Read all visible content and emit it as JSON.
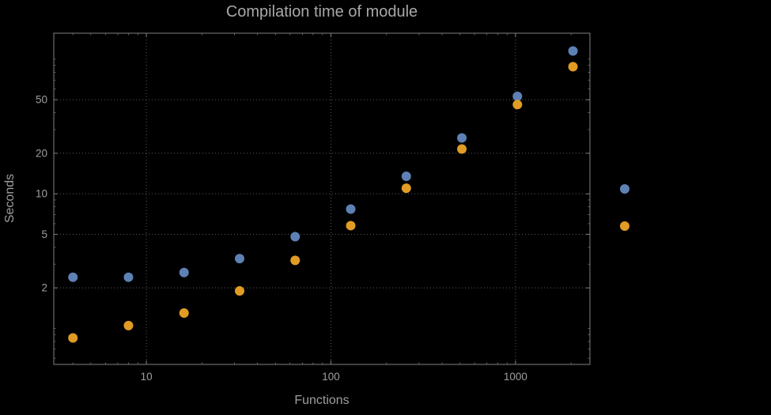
{
  "figure": {
    "background": "#000000",
    "text_color": "#9e9e9e",
    "title_color": "#a8a8a8",
    "frame_color": "#7f7f7f",
    "grid_color": "#5c5c5c"
  },
  "chart_data": {
    "type": "scatter",
    "title": "Compilation time of module",
    "xlabel": "Functions",
    "ylabel": "Seconds",
    "x_scale": "log",
    "y_scale": "log",
    "xlim": [
      3.15,
      2530
    ],
    "ylim": [
      0.54,
      156
    ],
    "xticks": [
      10,
      100,
      1000
    ],
    "yticks": [
      2,
      5,
      10,
      20,
      50
    ],
    "grid": true,
    "grid_style": "dotted",
    "x": [
      4,
      8,
      16,
      32,
      64,
      128,
      256,
      512,
      1024,
      2048
    ],
    "series": [
      {
        "name": "blue",
        "color": "#5e81b5",
        "values": [
          2.4,
          2.4,
          2.6,
          3.3,
          4.8,
          7.7,
          13.5,
          26,
          53,
          115
        ]
      },
      {
        "name": "orange",
        "color": "#e19c24",
        "values": [
          0.85,
          1.05,
          1.3,
          1.9,
          3.2,
          5.8,
          11,
          21.5,
          46,
          88
        ]
      }
    ],
    "legend": {
      "position": "right-of-plot",
      "markers": [
        "#5e81b5",
        "#e19c24"
      ]
    }
  }
}
